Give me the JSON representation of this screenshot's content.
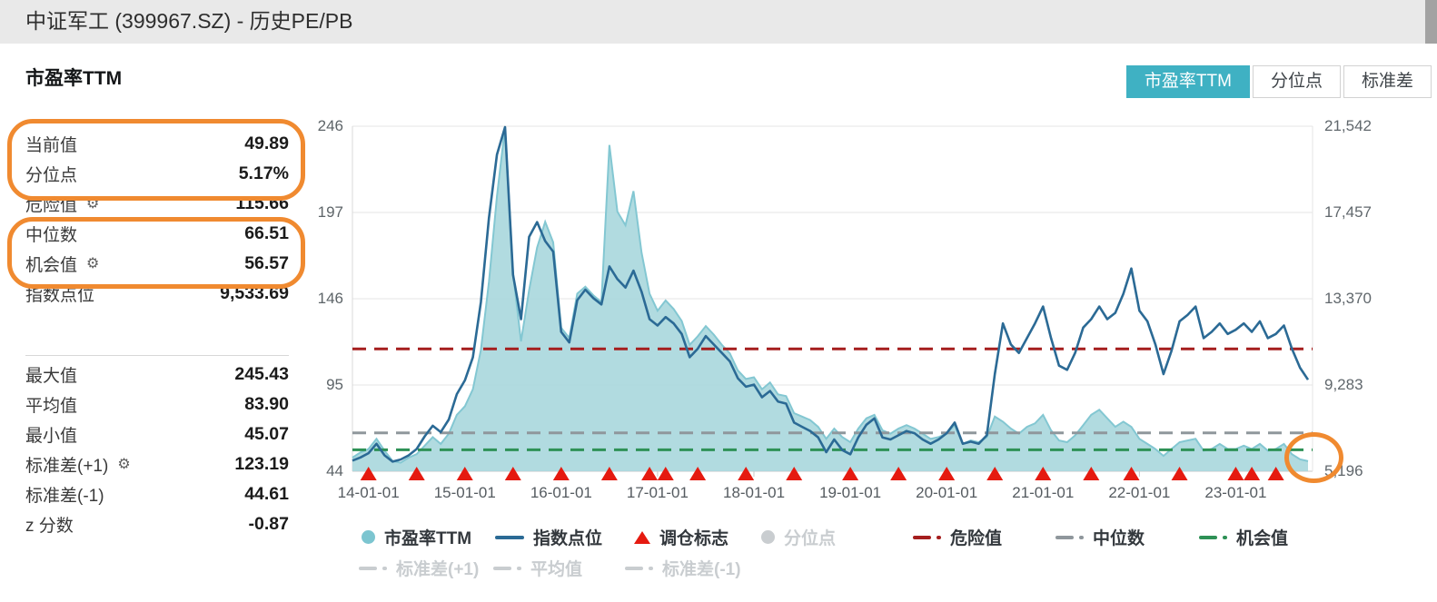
{
  "page": {
    "title": "中证军工 (399967.SZ) - 历史PE/PB"
  },
  "section": {
    "heading": "市盈率TTM"
  },
  "icons": {
    "gear": "⚙"
  },
  "colors": {
    "tab_active": "#3fb1c3",
    "annotation_orange": "#f08a30",
    "pe_fill": "#a9d7dd",
    "pe_edge": "#83c7d2",
    "index_line": "#2b6a95",
    "rebalance_red": "#e51a10",
    "danger_red": "#a51e1e",
    "median_gray": "#8f979c",
    "opportunity_green": "#2e9156",
    "disabled_gray": "#c9cdd0"
  },
  "tabs": [
    {
      "id": "pe-ttm",
      "label": "市盈率TTM",
      "active": true
    },
    {
      "id": "percentile",
      "label": "分位点",
      "active": false
    },
    {
      "id": "std-dev",
      "label": "标准差",
      "active": false
    }
  ],
  "stats": {
    "group1": [
      {
        "label": "当前值",
        "value": "49.89",
        "gear": false
      },
      {
        "label": "分位点",
        "value": "5.17%",
        "gear": false
      },
      {
        "label": "危险值",
        "value": "115.66",
        "gear": true
      },
      {
        "label": "中位数",
        "value": "66.51",
        "gear": false
      },
      {
        "label": "机会值",
        "value": "56.57",
        "gear": true
      },
      {
        "label": "指数点位",
        "value": "9,533.69",
        "gear": false
      }
    ],
    "group2": [
      {
        "label": "最大值",
        "value": "245.43",
        "gear": false
      },
      {
        "label": "平均值",
        "value": "83.90",
        "gear": false
      },
      {
        "label": "最小值",
        "value": "45.07",
        "gear": false
      },
      {
        "label": "标准差(+1)",
        "value": "123.19",
        "gear": true
      },
      {
        "label": "标准差(-1)",
        "value": "44.61",
        "gear": false
      },
      {
        "label": "z 分数",
        "value": "-0.87",
        "gear": false
      }
    ]
  },
  "chart_data": {
    "type": "area+line",
    "title": "市盈率TTM",
    "axes": {
      "left_label": "市盈率TTM",
      "right_label": "指数点位",
      "left_ticks": [
        "246",
        "197",
        "146",
        "95",
        "44"
      ],
      "right_ticks": [
        "21,542",
        "17,457",
        "13,370",
        "9,283",
        "5,196"
      ],
      "left_range": [
        44,
        246
      ],
      "right_range": [
        5196,
        21542
      ],
      "x_ticks": [
        {
          "label": "14-01-01",
          "month": "2014-01"
        },
        {
          "label": "15-01-01",
          "month": "2015-01"
        },
        {
          "label": "16-01-01",
          "month": "2016-01"
        },
        {
          "label": "17-01-01",
          "month": "2017-01"
        },
        {
          "label": "18-01-01",
          "month": "2018-01"
        },
        {
          "label": "19-01-01",
          "month": "2019-01"
        },
        {
          "label": "20-01-01",
          "month": "2020-01"
        },
        {
          "label": "21-01-01",
          "month": "2021-01"
        },
        {
          "label": "22-01-01",
          "month": "2022-01"
        },
        {
          "label": "23-01-01",
          "month": "2023-01"
        }
      ],
      "grid": true
    },
    "months": [
      "2013-11",
      "2013-12",
      "2014-01",
      "2014-02",
      "2014-03",
      "2014-04",
      "2014-05",
      "2014-06",
      "2014-07",
      "2014-08",
      "2014-09",
      "2014-10",
      "2014-11",
      "2014-12",
      "2015-01",
      "2015-02",
      "2015-03",
      "2015-04",
      "2015-05",
      "2015-06",
      "2015-07",
      "2015-08",
      "2015-09",
      "2015-10",
      "2015-11",
      "2015-12",
      "2016-01",
      "2016-02",
      "2016-03",
      "2016-04",
      "2016-05",
      "2016-06",
      "2016-07",
      "2016-08",
      "2016-09",
      "2016-10",
      "2016-11",
      "2016-12",
      "2017-01",
      "2017-02",
      "2017-03",
      "2017-04",
      "2017-05",
      "2017-06",
      "2017-07",
      "2017-08",
      "2017-09",
      "2017-10",
      "2017-11",
      "2017-12",
      "2018-01",
      "2018-02",
      "2018-03",
      "2018-04",
      "2018-05",
      "2018-06",
      "2018-07",
      "2018-08",
      "2018-09",
      "2018-10",
      "2018-11",
      "2018-12",
      "2019-01",
      "2019-02",
      "2019-03",
      "2019-04",
      "2019-05",
      "2019-06",
      "2019-07",
      "2019-08",
      "2019-09",
      "2019-10",
      "2019-11",
      "2019-12",
      "2020-01",
      "2020-02",
      "2020-03",
      "2020-04",
      "2020-05",
      "2020-06",
      "2020-07",
      "2020-08",
      "2020-09",
      "2020-10",
      "2020-11",
      "2020-12",
      "2021-01",
      "2021-02",
      "2021-03",
      "2021-04",
      "2021-05",
      "2021-06",
      "2021-07",
      "2021-08",
      "2021-09",
      "2021-10",
      "2021-11",
      "2021-12",
      "2022-01",
      "2022-02",
      "2022-03",
      "2022-04",
      "2022-05",
      "2022-06",
      "2022-07",
      "2022-08",
      "2022-09",
      "2022-10",
      "2022-11",
      "2022-12",
      "2023-01",
      "2023-02",
      "2023-03",
      "2023-04",
      "2023-05",
      "2023-06",
      "2023-07",
      "2023-08",
      "2023-09",
      "2023-10"
    ],
    "series": [
      {
        "name": "市盈率TTM",
        "axis": "left",
        "style": "area",
        "fill": "#a9d7dd",
        "color": "#83c7d2",
        "values": [
          52,
          55,
          57,
          63,
          56,
          50,
          49,
          52,
          54,
          59,
          64,
          60,
          66,
          77,
          82,
          92,
          115,
          155,
          205,
          245.43,
          160,
          120,
          150,
          175,
          190,
          178,
          128,
          122,
          148,
          152,
          147,
          143,
          235,
          196,
          188,
          208,
          172,
          148,
          138,
          144,
          139,
          132,
          118,
          123,
          129,
          124,
          118,
          113,
          103,
          98,
          99,
          92,
          96,
          89,
          88,
          78,
          76,
          74,
          70,
          63,
          69,
          64,
          61,
          69,
          75,
          77,
          68,
          66,
          69,
          71,
          69,
          66,
          63,
          64,
          66,
          71,
          60,
          62,
          61,
          64,
          76,
          73,
          69,
          66,
          70,
          72,
          77,
          68,
          62,
          61,
          65,
          71,
          77,
          80,
          75,
          70,
          73,
          70,
          63,
          60,
          57,
          53,
          57,
          61,
          62,
          63,
          56,
          57,
          60,
          57,
          57,
          59,
          57,
          60,
          56,
          57,
          60,
          54,
          51,
          49.89
        ]
      },
      {
        "name": "指数点位",
        "axis": "right",
        "style": "line",
        "color": "#2b6a95",
        "values": [
          5700,
          5850,
          6050,
          6500,
          5950,
          5650,
          5750,
          5950,
          6250,
          6850,
          7350,
          7050,
          7650,
          8850,
          9500,
          10600,
          13200,
          17200,
          20200,
          21500,
          14500,
          12400,
          16300,
          17000,
          16100,
          15600,
          11800,
          11300,
          13300,
          13800,
          13400,
          13100,
          14900,
          14300,
          13900,
          14700,
          13700,
          12400,
          12100,
          12500,
          12200,
          11700,
          10600,
          11000,
          11600,
          11200,
          10800,
          10400,
          9600,
          9200,
          9300,
          8700,
          9000,
          8500,
          8400,
          7500,
          7300,
          7100,
          6800,
          6100,
          6700,
          6200,
          6000,
          6800,
          7400,
          7700,
          6800,
          6700,
          6900,
          7100,
          7000,
          6700,
          6500,
          6700,
          7000,
          7500,
          6500,
          6600,
          6500,
          6900,
          9800,
          12200,
          11200,
          10800,
          11500,
          12200,
          13000,
          11500,
          10200,
          10000,
          10800,
          12000,
          12400,
          13000,
          12400,
          12700,
          13600,
          14800,
          12800,
          12300,
          11200,
          9800,
          10900,
          12300,
          12600,
          13000,
          11500,
          11800,
          12200,
          11700,
          11900,
          12200,
          11800,
          12300,
          11500,
          11700,
          12100,
          11000,
          10100,
          9533.69
        ]
      }
    ],
    "ref_lines": [
      {
        "label": "危险值",
        "value": 115.66,
        "color": "#a51e1e"
      },
      {
        "label": "中位数",
        "value": 66.51,
        "color": "#8f979c"
      },
      {
        "label": "机会值",
        "value": 56.57,
        "color": "#2e9156"
      }
    ],
    "rebalance_markers": [
      "2014-01",
      "2014-07",
      "2015-01",
      "2015-07",
      "2016-01",
      "2016-07",
      "2016-12",
      "2017-02",
      "2017-06",
      "2017-12",
      "2018-06",
      "2019-01",
      "2019-07",
      "2020-01",
      "2020-07",
      "2021-01",
      "2021-07",
      "2021-12",
      "2022-06",
      "2023-01",
      "2023-03",
      "2023-06"
    ],
    "legend_rows": [
      [
        {
          "label": "市盈率TTM",
          "marker": "dot",
          "color": "#7cc5d0",
          "disabled": false
        },
        {
          "label": "指数点位",
          "marker": "line",
          "color": "#2b6a95",
          "disabled": false
        },
        {
          "label": "调仓标志",
          "marker": "triangle",
          "color": "#e51a10",
          "disabled": false
        },
        {
          "label": "分位点",
          "marker": "dot",
          "color": "#c9cdd0",
          "disabled": true
        },
        {
          "label": "危险值",
          "marker": "dashdot",
          "color": "#a51e1e",
          "disabled": false
        },
        {
          "label": "中位数",
          "marker": "dashdot",
          "color": "#8f979c",
          "disabled": false
        },
        {
          "label": "机会值",
          "marker": "dashdot",
          "color": "#2e9156",
          "disabled": false
        }
      ],
      [
        {
          "label": "标准差(+1)",
          "marker": "dashdot",
          "color": "#c9cdd0",
          "disabled": true
        },
        {
          "label": "平均值",
          "marker": "dashdot",
          "color": "#c9cdd0",
          "disabled": true
        },
        {
          "label": "标准差(-1)",
          "marker": "dashdot",
          "color": "#c9cdd0",
          "disabled": true
        }
      ]
    ]
  },
  "annotations": {
    "color": "#f08a30",
    "items": [
      "current-value-and-percentile",
      "median-and-opportunity",
      "chart-end-dip"
    ]
  }
}
